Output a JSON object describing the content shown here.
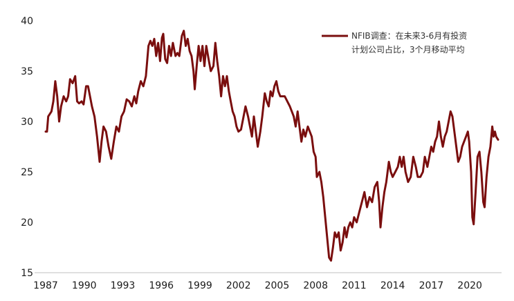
{
  "chart_data": {
    "type": "line",
    "title": "",
    "xlabel": "",
    "ylabel": "",
    "xlim": [
      1987,
      2022.2
    ],
    "ylim": [
      15,
      40
    ],
    "x_ticks": [
      "1987",
      "1990",
      "1993",
      "1996",
      "1999",
      "2002",
      "2005",
      "2008",
      "2011",
      "2014",
      "2017",
      "2020"
    ],
    "y_ticks": [
      "15",
      "20",
      "25",
      "30",
      "35",
      "40"
    ],
    "grid": false,
    "legend_position": "top-right",
    "color": "#7a0e0e",
    "series": [
      {
        "name": "NFIB调查：在未来3-6月有投资计划公司占比，3个月移动平均",
        "legend_lines": [
          "NFIB调查：在未来3-6月有投资",
          "计划公司占比，3个月移动平均"
        ],
        "points": [
          [
            1987.0,
            29.0
          ],
          [
            1987.1,
            29.0
          ],
          [
            1987.2,
            30.5
          ],
          [
            1987.45,
            31.0
          ],
          [
            1987.6,
            32.0
          ],
          [
            1987.75,
            34.0
          ],
          [
            1987.9,
            32.5
          ],
          [
            1988.05,
            30.0
          ],
          [
            1988.2,
            31.5
          ],
          [
            1988.4,
            32.5
          ],
          [
            1988.6,
            32.0
          ],
          [
            1988.75,
            32.5
          ],
          [
            1988.9,
            34.2
          ],
          [
            1989.1,
            33.8
          ],
          [
            1989.3,
            34.5
          ],
          [
            1989.45,
            32.0
          ],
          [
            1989.6,
            31.8
          ],
          [
            1989.8,
            32.0
          ],
          [
            1989.95,
            31.7
          ],
          [
            1990.15,
            33.5
          ],
          [
            1990.3,
            33.5
          ],
          [
            1990.45,
            32.5
          ],
          [
            1990.6,
            31.5
          ],
          [
            1990.8,
            30.5
          ],
          [
            1991.0,
            28.5
          ],
          [
            1991.2,
            26.0
          ],
          [
            1991.35,
            28.0
          ],
          [
            1991.5,
            29.5
          ],
          [
            1991.7,
            29.0
          ],
          [
            1991.9,
            27.5
          ],
          [
            1992.1,
            26.3
          ],
          [
            1992.3,
            28.0
          ],
          [
            1992.5,
            29.5
          ],
          [
            1992.7,
            29.0
          ],
          [
            1992.9,
            30.5
          ],
          [
            1993.1,
            31.0
          ],
          [
            1993.3,
            32.2
          ],
          [
            1993.5,
            32.0
          ],
          [
            1993.7,
            31.5
          ],
          [
            1993.9,
            32.5
          ],
          [
            1994.05,
            31.8
          ],
          [
            1994.2,
            33.0
          ],
          [
            1994.4,
            34.0
          ],
          [
            1994.6,
            33.5
          ],
          [
            1994.8,
            34.5
          ],
          [
            1995.0,
            37.5
          ],
          [
            1995.15,
            38.0
          ],
          [
            1995.3,
            37.5
          ],
          [
            1995.45,
            38.2
          ],
          [
            1995.6,
            36.5
          ],
          [
            1995.75,
            37.8
          ],
          [
            1995.9,
            36.0
          ],
          [
            1996.05,
            38.3
          ],
          [
            1996.15,
            38.7
          ],
          [
            1996.3,
            36.2
          ],
          [
            1996.45,
            35.8
          ],
          [
            1996.6,
            37.5
          ],
          [
            1996.75,
            36.5
          ],
          [
            1996.9,
            37.8
          ],
          [
            1997.1,
            36.5
          ],
          [
            1997.25,
            36.8
          ],
          [
            1997.4,
            36.5
          ],
          [
            1997.6,
            38.5
          ],
          [
            1997.75,
            39.0
          ],
          [
            1997.9,
            37.5
          ],
          [
            1998.05,
            38.2
          ],
          [
            1998.2,
            37.0
          ],
          [
            1998.35,
            36.5
          ],
          [
            1998.5,
            35.0
          ],
          [
            1998.6,
            33.2
          ],
          [
            1998.75,
            35.5
          ],
          [
            1998.9,
            37.5
          ],
          [
            1999.05,
            36.0
          ],
          [
            1999.2,
            37.5
          ],
          [
            1999.35,
            35.5
          ],
          [
            1999.5,
            37.5
          ],
          [
            1999.7,
            36.0
          ],
          [
            1999.85,
            35.0
          ],
          [
            2000.05,
            35.5
          ],
          [
            2000.2,
            37.8
          ],
          [
            2000.35,
            36.0
          ],
          [
            2000.5,
            34.5
          ],
          [
            2000.65,
            32.5
          ],
          [
            2000.8,
            34.5
          ],
          [
            2000.95,
            33.5
          ],
          [
            2001.1,
            34.5
          ],
          [
            2001.25,
            33.0
          ],
          [
            2001.4,
            32.0
          ],
          [
            2001.55,
            31.0
          ],
          [
            2001.7,
            30.5
          ],
          [
            2001.85,
            29.5
          ],
          [
            2002.0,
            29.0
          ],
          [
            2002.2,
            29.2
          ],
          [
            2002.4,
            30.5
          ],
          [
            2002.55,
            31.5
          ],
          [
            2002.75,
            30.5
          ],
          [
            2002.9,
            29.5
          ],
          [
            2003.05,
            28.5
          ],
          [
            2003.2,
            30.5
          ],
          [
            2003.35,
            29.0
          ],
          [
            2003.5,
            27.5
          ],
          [
            2003.7,
            29.0
          ],
          [
            2003.85,
            30.5
          ],
          [
            2004.05,
            32.8
          ],
          [
            2004.2,
            32.0
          ],
          [
            2004.35,
            31.5
          ],
          [
            2004.5,
            33.0
          ],
          [
            2004.65,
            32.5
          ],
          [
            2004.8,
            33.5
          ],
          [
            2004.95,
            34.0
          ],
          [
            2005.1,
            33.0
          ],
          [
            2005.25,
            32.5
          ],
          [
            2005.4,
            32.5
          ],
          [
            2005.6,
            32.5
          ],
          [
            2005.8,
            32.0
          ],
          [
            2006.0,
            31.5
          ],
          [
            2006.15,
            31.0
          ],
          [
            2006.3,
            30.5
          ],
          [
            2006.45,
            29.5
          ],
          [
            2006.6,
            31.0
          ],
          [
            2006.75,
            29.5
          ],
          [
            2006.9,
            28.0
          ],
          [
            2007.05,
            29.2
          ],
          [
            2007.2,
            28.5
          ],
          [
            2007.4,
            29.5
          ],
          [
            2007.55,
            29.0
          ],
          [
            2007.7,
            28.5
          ],
          [
            2007.85,
            27.0
          ],
          [
            2008.0,
            26.5
          ],
          [
            2008.1,
            24.5
          ],
          [
            2008.3,
            25.0
          ],
          [
            2008.45,
            24.0
          ],
          [
            2008.6,
            22.5
          ],
          [
            2008.75,
            20.5
          ],
          [
            2008.9,
            18.5
          ],
          [
            2009.05,
            16.5
          ],
          [
            2009.2,
            16.2
          ],
          [
            2009.35,
            17.5
          ],
          [
            2009.5,
            19.0
          ],
          [
            2009.65,
            18.5
          ],
          [
            2009.8,
            19.0
          ],
          [
            2009.95,
            17.2
          ],
          [
            2010.1,
            18.0
          ],
          [
            2010.25,
            19.5
          ],
          [
            2010.4,
            18.5
          ],
          [
            2010.55,
            19.5
          ],
          [
            2010.7,
            20.0
          ],
          [
            2010.85,
            19.5
          ],
          [
            2011.0,
            20.5
          ],
          [
            2011.2,
            20.0
          ],
          [
            2011.4,
            21.0
          ],
          [
            2011.6,
            22.0
          ],
          [
            2011.8,
            23.0
          ],
          [
            2012.0,
            21.5
          ],
          [
            2012.2,
            22.5
          ],
          [
            2012.4,
            22.0
          ],
          [
            2012.6,
            23.5
          ],
          [
            2012.8,
            24.0
          ],
          [
            2012.95,
            22.0
          ],
          [
            2013.05,
            19.5
          ],
          [
            2013.2,
            21.5
          ],
          [
            2013.35,
            23.0
          ],
          [
            2013.5,
            24.0
          ],
          [
            2013.7,
            26.0
          ],
          [
            2013.85,
            25.0
          ],
          [
            2014.0,
            24.5
          ],
          [
            2014.2,
            25.0
          ],
          [
            2014.4,
            25.5
          ],
          [
            2014.55,
            26.5
          ],
          [
            2014.7,
            25.5
          ],
          [
            2014.85,
            26.5
          ],
          [
            2015.0,
            25.0
          ],
          [
            2015.2,
            24.0
          ],
          [
            2015.4,
            24.5
          ],
          [
            2015.6,
            26.5
          ],
          [
            2015.8,
            25.5
          ],
          [
            2015.95,
            24.5
          ],
          [
            2016.15,
            24.5
          ],
          [
            2016.35,
            25.0
          ],
          [
            2016.5,
            26.5
          ],
          [
            2016.7,
            25.5
          ],
          [
            2016.85,
            26.5
          ],
          [
            2017.0,
            27.5
          ],
          [
            2017.15,
            27.0
          ],
          [
            2017.3,
            28.0
          ],
          [
            2017.45,
            28.5
          ],
          [
            2017.6,
            30.0
          ],
          [
            2017.75,
            28.5
          ],
          [
            2017.9,
            27.5
          ],
          [
            2018.05,
            28.5
          ],
          [
            2018.2,
            29.0
          ],
          [
            2018.35,
            30.0
          ],
          [
            2018.5,
            31.0
          ],
          [
            2018.65,
            30.5
          ],
          [
            2018.8,
            29.0
          ],
          [
            2018.95,
            27.5
          ],
          [
            2019.1,
            26.0
          ],
          [
            2019.25,
            26.5
          ],
          [
            2019.4,
            27.5
          ],
          [
            2019.55,
            28.0
          ],
          [
            2019.7,
            28.5
          ],
          [
            2019.85,
            29.0
          ],
          [
            2019.95,
            28.0
          ],
          [
            2020.1,
            25.0
          ],
          [
            2020.2,
            20.5
          ],
          [
            2020.3,
            19.8
          ],
          [
            2020.45,
            23.0
          ],
          [
            2020.6,
            26.5
          ],
          [
            2020.75,
            27.0
          ],
          [
            2020.9,
            25.0
          ],
          [
            2021.05,
            22.0
          ],
          [
            2021.15,
            21.5
          ],
          [
            2021.3,
            24.5
          ],
          [
            2021.45,
            26.5
          ],
          [
            2021.6,
            27.5
          ],
          [
            2021.75,
            29.5
          ],
          [
            2021.85,
            28.5
          ],
          [
            2021.95,
            29.0
          ],
          [
            2022.05,
            28.5
          ],
          [
            2022.2,
            28.2
          ]
        ]
      }
    ]
  }
}
